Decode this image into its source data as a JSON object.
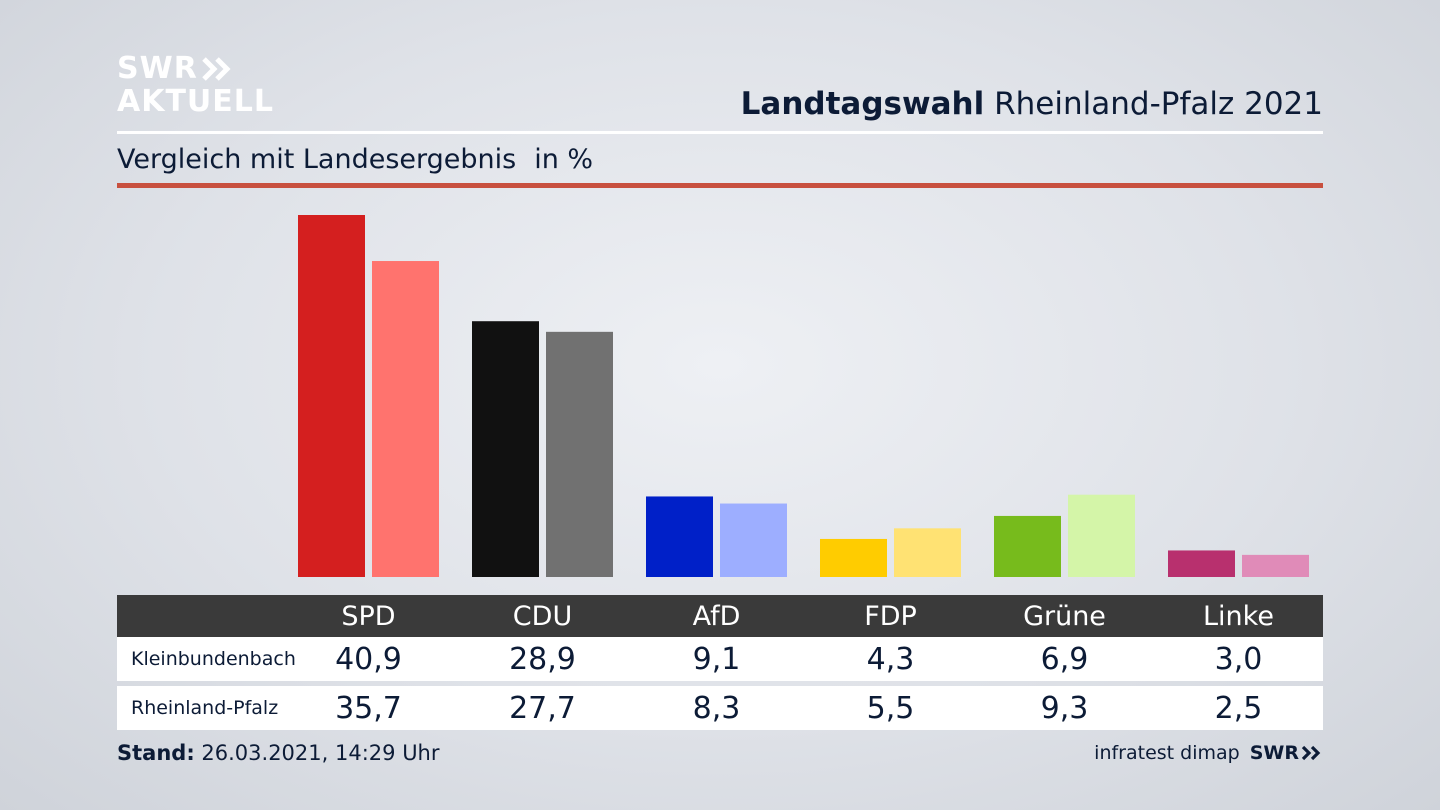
{
  "logo": {
    "line1": "SWR",
    "line2": "AKTUELL"
  },
  "header": {
    "title_strong": "Landtagswahl",
    "title_rest": "Rheinland-Pfalz 2021"
  },
  "subtitle": {
    "text": "Vergleich mit Landesergebnis",
    "unit": "in %"
  },
  "chart_data": {
    "type": "bar",
    "categories": [
      "SPD",
      "CDU",
      "AfD",
      "FDP",
      "Grüne",
      "Linke"
    ],
    "series": [
      {
        "name": "Kleinbundenbach",
        "values": [
          40.9,
          28.9,
          9.1,
          4.3,
          6.9,
          3.0
        ],
        "display": [
          "40,9",
          "28,9",
          "9,1",
          "4,3",
          "6,9",
          "3,0"
        ],
        "colors": [
          "#d41f1f",
          "#111111",
          "#0020c8",
          "#ffcc00",
          "#77bb1c",
          "#b8306e"
        ]
      },
      {
        "name": "Rheinland-Pfalz",
        "values": [
          35.7,
          27.7,
          8.3,
          5.5,
          9.3,
          2.5
        ],
        "display": [
          "35,7",
          "27,7",
          "8,3",
          "5,5",
          "9,3",
          "2,5"
        ],
        "colors": [
          "#ff736e",
          "#717171",
          "#9daeff",
          "#ffe273",
          "#d4f5a8",
          "#e08bb8"
        ]
      }
    ],
    "ylim": [
      0,
      41
    ],
    "legend": "table-below"
  },
  "footer": {
    "stand_label": "Stand:",
    "stand_value": "26.03.2021, 14:29 Uhr",
    "source": "infratest dimap",
    "source_logo": "SWR"
  }
}
